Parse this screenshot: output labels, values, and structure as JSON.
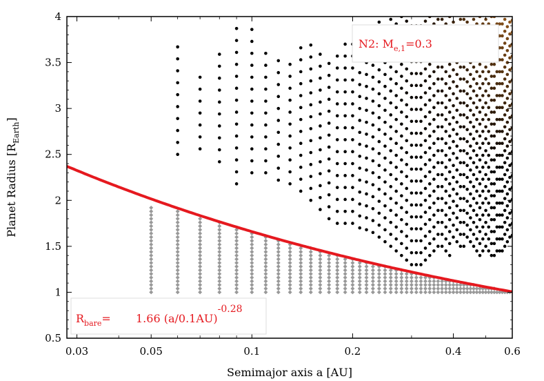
{
  "chart_data": {
    "type": "scatter",
    "title": "",
    "xlabel": {
      "main": "Semimajor axis a [AU]"
    },
    "ylabel": {
      "main": "Planet Radius [R",
      "sub": "Earth",
      "close": "]"
    },
    "x_scale": "log",
    "xlim": [
      0.028,
      0.6
    ],
    "ylim": [
      0.5,
      4.0
    ],
    "x_ticks": [
      0.03,
      0.05,
      0.1,
      0.2,
      0.4,
      0.6
    ],
    "x_tick_labels": [
      "0.03",
      "0.05",
      "0.1",
      "0.2",
      "0.4",
      "0.6"
    ],
    "y_ticks": [
      0.5,
      1,
      1.5,
      2,
      2.5,
      3,
      3.5,
      4
    ],
    "y_tick_labels": [
      "0.5",
      "1",
      "1.5",
      "2",
      "2.5",
      "3",
      "3.5",
      "4"
    ],
    "grid": false,
    "fit_curve": {
      "name": "R_bare",
      "coefficient": 1.66,
      "reference_a": 0.1,
      "exponent": -0.28,
      "color": "#e5191f"
    },
    "annotations": {
      "model_box": {
        "main": "N2: M",
        "sub": "e,1",
        "rest": "=0.3"
      },
      "formula_box": {
        "lhs": "R",
        "lhs_sub": "bare",
        "eq": "=",
        "rhs": "1.66 (a/0.1AU)",
        "sup": "-0.28"
      }
    },
    "series": [
      {
        "marker": "dot",
        "color": "#000000",
        "a_values": [
          0.06,
          0.07,
          0.08,
          0.09,
          0.1,
          0.11,
          0.12,
          0.13,
          0.14,
          0.15,
          0.16,
          0.17,
          0.18,
          0.19,
          0.2,
          0.21,
          0.22,
          0.23,
          0.24,
          0.25,
          0.26,
          0.27,
          0.28,
          0.29,
          0.3,
          0.31,
          0.32,
          0.33,
          0.34,
          0.35,
          0.36,
          0.37,
          0.38,
          0.39,
          0.4,
          0.41,
          0.42,
          0.43,
          0.44,
          0.45,
          0.46,
          0.47,
          0.48,
          0.49,
          0.5,
          0.51,
          0.52,
          0.53,
          0.54,
          0.55,
          0.56,
          0.57,
          0.58,
          0.59,
          0.6
        ],
        "radius_min": [
          2.5,
          2.56,
          2.42,
          2.18,
          2.3,
          2.3,
          2.22,
          2.18,
          2.1,
          2.0,
          1.9,
          1.8,
          1.75,
          1.75,
          1.75,
          1.7,
          1.68,
          1.65,
          1.6,
          1.55,
          1.5,
          1.45,
          1.4,
          1.35,
          1.3,
          1.3,
          1.3,
          1.35,
          1.4,
          1.45,
          1.5,
          1.5,
          1.45,
          1.4,
          1.6,
          1.55,
          1.5,
          1.5,
          1.6,
          1.55,
          1.5,
          1.45,
          1.4,
          1.45,
          1.5,
          1.45,
          1.4,
          1.4,
          1.45,
          1.45,
          1.45,
          1.5,
          1.55,
          1.6,
          1.62
        ],
        "radius_max": [
          3.7,
          3.45,
          3.6,
          3.9,
          3.88,
          3.72,
          3.55,
          3.6,
          3.72,
          3.7,
          3.6,
          3.55,
          3.6,
          3.7,
          3.8,
          3.85,
          3.9,
          3.95,
          4.0,
          4.0,
          4.0,
          4.0,
          4.0,
          4.0,
          4.0,
          4.0,
          4.0,
          4.0,
          4.0,
          4.0,
          4.0,
          4.0,
          4.0,
          4.0,
          4.0,
          4.0,
          4.0,
          4.0,
          4.0,
          4.0,
          4.0,
          4.0,
          4.0,
          4.0,
          4.0,
          4.0,
          4.0,
          4.0,
          4.0,
          4.0,
          4.0,
          4.0,
          4.0,
          4.0,
          4.0
        ],
        "radius_step": 0.13
      },
      {
        "marker": "diamond",
        "color": "#999999",
        "a_values": [
          0.05,
          0.06,
          0.07,
          0.08,
          0.09,
          0.1,
          0.11,
          0.12,
          0.13,
          0.14,
          0.15,
          0.16,
          0.17,
          0.18,
          0.19,
          0.2,
          0.21,
          0.22,
          0.23,
          0.24,
          0.25,
          0.26,
          0.27,
          0.28,
          0.29,
          0.3,
          0.31,
          0.32,
          0.33,
          0.34,
          0.35,
          0.36,
          0.37,
          0.38,
          0.39,
          0.4,
          0.41,
          0.42,
          0.43,
          0.44,
          0.45,
          0.46,
          0.47,
          0.48,
          0.49,
          0.5,
          0.51,
          0.52,
          0.53,
          0.54,
          0.55,
          0.56,
          0.57,
          0.58,
          0.59
        ],
        "radius_min": 1.0,
        "radius_max_rule": "below fit_curve",
        "radius_step": 0.04
      }
    ]
  }
}
